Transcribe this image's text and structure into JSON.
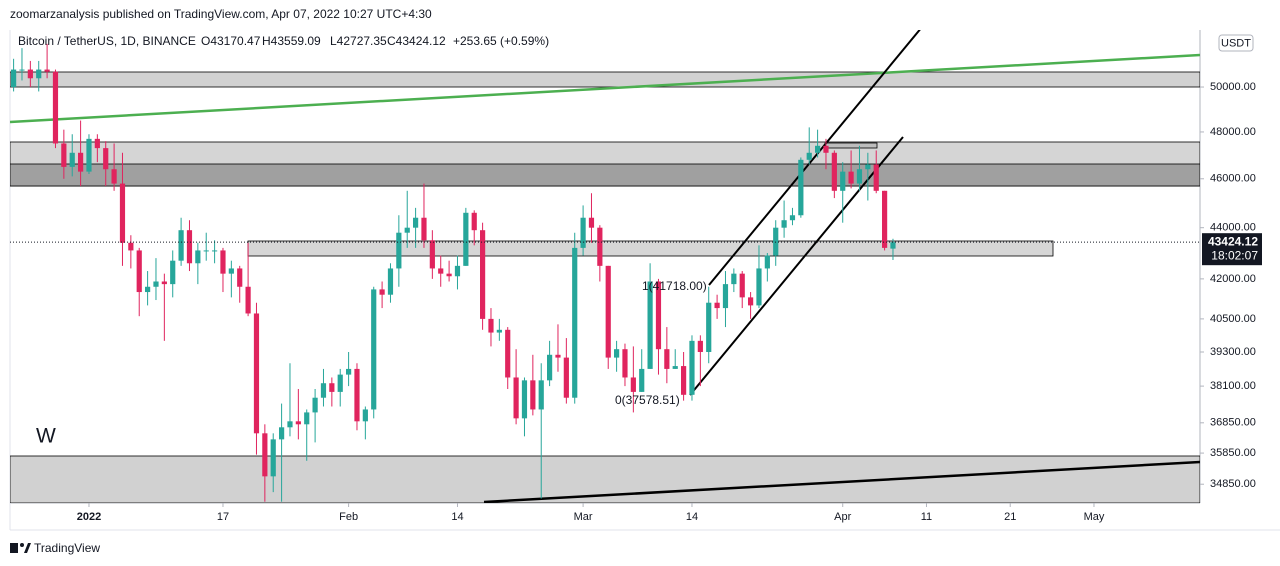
{
  "header": "zoomarzanalysis published on TradingView.com, Apr 07, 2022 10:27 UTC+4:30",
  "footer": "TradingView",
  "chart_data": {
    "type": "candlestick",
    "title": "Bitcoin / TetherUS, 1D, BINANCE",
    "ohlc_labels": [
      "O43170.47",
      "H43559.09",
      "L42727.35",
      "C43424.12"
    ],
    "change_label": "+253.65 (+0.59%)",
    "currency": "USDT",
    "annotations": [
      "W",
      "1(41718.00)",
      "0(37578.51)"
    ],
    "last_price": {
      "value": 43424.12,
      "label": "43424.12"
    },
    "countdown": "18:02:07",
    "log_scale": true,
    "up_color": "#26a69a",
    "down_color": "#e0245e",
    "xlim": [
      -0.43,
      141.66
    ],
    "xticks": [
      {
        "value": 9,
        "label": "2022"
      },
      {
        "value": 25,
        "label": "17"
      },
      {
        "value": 40,
        "label": "Feb"
      },
      {
        "value": 53,
        "label": "14"
      },
      {
        "value": 68,
        "label": "Mar"
      },
      {
        "value": 81,
        "label": "14"
      },
      {
        "value": 99,
        "label": "Apr"
      },
      {
        "value": 109,
        "label": "11"
      },
      {
        "value": 119,
        "label": "21"
      },
      {
        "value": 129,
        "label": "May"
      }
    ],
    "ylim": [
      34260,
      52660
    ],
    "yticks": [
      {
        "value": 50000,
        "label": "50000.00"
      },
      {
        "value": 48000,
        "label": "48000.00"
      },
      {
        "value": 46000,
        "label": "46000.00"
      },
      {
        "value": 44000,
        "label": "44000.00"
      },
      {
        "value": 42000,
        "label": "42000.00"
      },
      {
        "value": 40500,
        "label": "40500.00"
      },
      {
        "value": 39300,
        "label": "39300.00"
      },
      {
        "value": 38100,
        "label": "38100.00"
      },
      {
        "value": 36850,
        "label": "36850.00"
      },
      {
        "value": 35850,
        "label": "35850.00"
      },
      {
        "value": 34850,
        "label": "34850.00"
      }
    ],
    "open": [
      50000,
      50800,
      50800,
      50400,
      50800,
      50700,
      47500,
      46500,
      47100,
      46300,
      47700,
      47300,
      46400,
      45800,
      43400,
      43100,
      41500,
      41700,
      41900,
      41800,
      42700,
      43900,
      42600,
      43100,
      43100,
      43100,
      42200,
      42400,
      41700,
      40700,
      36500,
      35100,
      36300,
      36700,
      36900,
      36800,
      37200,
      37700,
      38200,
      37900,
      38500,
      38700,
      36900,
      37300,
      41600,
      41400,
      42400,
      43800,
      44000,
      44400,
      43500,
      42400,
      42200,
      42100,
      42500,
      44600,
      43900,
      40500,
      40000,
      40100,
      38400,
      37000,
      38300,
      37300,
      38300,
      39200,
      39100,
      37700,
      43200,
      44400,
      44000,
      42500,
      39100,
      39400,
      38400,
      37900,
      38700,
      41900,
      39400,
      38700,
      38800,
      37800,
      39700,
      39300,
      41100,
      40900,
      41800,
      42200,
      41300,
      41000,
      42400,
      42900,
      44000,
      44300,
      44500,
      46800,
      47100,
      47400,
      47100,
      45500,
      46300,
      45800,
      46400,
      46600,
      45500,
      43170.47
    ],
    "high": [
      51300,
      51800,
      51200,
      51200,
      52000,
      50800,
      48100,
      47900,
      48500,
      47900,
      47900,
      47600,
      47500,
      47100,
      43700,
      43200,
      42300,
      42800,
      42200,
      43100,
      44400,
      44300,
      43400,
      43800,
      43500,
      43200,
      42700,
      42500,
      43400,
      41100,
      36800,
      36500,
      37500,
      38900,
      38000,
      37300,
      38000,
      38700,
      38400,
      38700,
      39300,
      38900,
      37400,
      41700,
      41900,
      42600,
      44500,
      45500,
      44800,
      45800,
      43900,
      42900,
      42700,
      42900,
      44800,
      44700,
      44200,
      40900,
      40500,
      40200,
      39400,
      38400,
      39200,
      38900,
      39700,
      40300,
      39800,
      43800,
      44900,
      45400,
      44100,
      42500,
      39700,
      39600,
      39500,
      39400,
      42600,
      42000,
      40200,
      39400,
      39300,
      39900,
      39900,
      41700,
      41400,
      42300,
      42400,
      42300,
      41500,
      43300,
      43000,
      44300,
      45100,
      44800,
      46900,
      48200,
      48100,
      47700,
      47200,
      46700,
      47200,
      47400,
      47100,
      47200,
      45500,
      43559.09
    ],
    "low": [
      49800,
      50300,
      50000,
      49800,
      50400,
      47300,
      46000,
      46100,
      45700,
      46200,
      46700,
      45700,
      45500,
      42500,
      42400,
      40600,
      41000,
      41200,
      39700,
      41300,
      42500,
      42300,
      41800,
      42700,
      42600,
      41500,
      41300,
      41100,
      40600,
      35800,
      34300,
      34600,
      34300,
      36400,
      36300,
      35600,
      36200,
      37400,
      37400,
      37400,
      38100,
      36600,
      36300,
      37000,
      40900,
      41100,
      41700,
      43200,
      43200,
      43200,
      42000,
      41700,
      41900,
      41600,
      42500,
      43300,
      40100,
      39500,
      39700,
      38000,
      36800,
      36400,
      37100,
      34400,
      38100,
      38600,
      37500,
      37500,
      42900,
      43400,
      41900,
      38700,
      38600,
      38100,
      37200,
      37900,
      38700,
      38500,
      38200,
      38700,
      37600,
      37600,
      38100,
      38900,
      40500,
      40200,
      41500,
      40900,
      40500,
      40900,
      41900,
      42500,
      43600,
      44100,
      44400,
      46600,
      46900,
      46400,
      45200,
      44200,
      45600,
      45500,
      45100,
      45400,
      43100,
      42727.35
    ],
    "close": [
      50800,
      50800,
      50400,
      50800,
      50700,
      47500,
      46500,
      47100,
      46300,
      47700,
      47300,
      46400,
      45800,
      43400,
      43100,
      41500,
      41700,
      41900,
      41800,
      42700,
      43900,
      42600,
      43100,
      43100,
      43100,
      42200,
      42400,
      41700,
      40700,
      36500,
      35100,
      36300,
      36700,
      36900,
      36800,
      37200,
      37700,
      38200,
      37900,
      38500,
      38700,
      36900,
      37300,
      41600,
      41400,
      42400,
      43800,
      44000,
      44400,
      43500,
      42400,
      42200,
      42100,
      42500,
      44600,
      43900,
      40500,
      40000,
      40100,
      38400,
      37000,
      38300,
      37300,
      38300,
      39200,
      39100,
      37700,
      43200,
      44400,
      44000,
      42500,
      39100,
      39400,
      38400,
      37900,
      38700,
      41900,
      39400,
      38700,
      38800,
      37800,
      39700,
      39300,
      41100,
      40900,
      41800,
      42200,
      41300,
      41000,
      42400,
      42900,
      44000,
      44300,
      44500,
      46800,
      47100,
      47400,
      47100,
      45500,
      46300,
      45800,
      46400,
      46600,
      45500,
      43200,
      43424.12
    ]
  }
}
